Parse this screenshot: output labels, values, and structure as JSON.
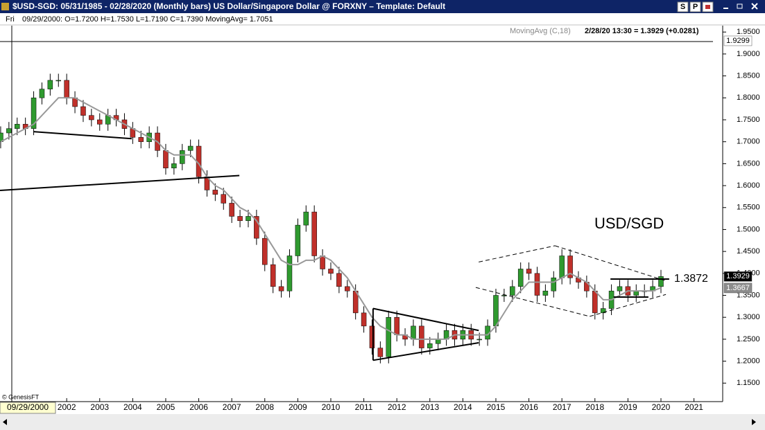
{
  "window": {
    "title": "$USD-SGD:  05/31/1985 - 02/28/2020  (Monthly bars)   US Dollar/Singapore Dollar @ FORXNY  –  Template: Default",
    "buttons": [
      "S",
      "P"
    ]
  },
  "info": {
    "day": "Fri",
    "text": "09/29/2000:  O=1.7200  H=1.7530  L=1.7190  C=1.7390  MovingAvg= 1.7051"
  },
  "indicator_readout": "2/28/20 13:30 = 1.3929 (+0.0281)",
  "copyright": "© GenesisFT",
  "cursor_date": "09/29/2000",
  "chart_data": {
    "type": "candlestick",
    "x": [
      2000,
      2000.25,
      2000.5,
      2000.75,
      2001,
      2001.25,
      2001.5,
      2001.75,
      2002,
      2002.25,
      2002.5,
      2002.75,
      2003,
      2003.25,
      2003.5,
      2003.75,
      2004,
      2004.25,
      2004.5,
      2004.75,
      2005,
      2005.25,
      2005.5,
      2005.75,
      2006,
      2006.25,
      2006.5,
      2006.75,
      2007,
      2007.25,
      2007.5,
      2007.75,
      2008,
      2008.25,
      2008.5,
      2008.75,
      2009,
      2009.25,
      2009.5,
      2009.75,
      2010,
      2010.25,
      2010.5,
      2010.75,
      2011,
      2011.25,
      2011.5,
      2011.75,
      2012,
      2012.25,
      2012.5,
      2012.75,
      2013,
      2013.25,
      2013.5,
      2013.75,
      2014,
      2014.25,
      2014.5,
      2014.75,
      2015,
      2015.25,
      2015.5,
      2015.75,
      2016,
      2016.25,
      2016.5,
      2016.75,
      2017,
      2017.25,
      2017.5,
      2017.75,
      2018,
      2018.25,
      2018.5,
      2018.75,
      2019,
      2019.25,
      2019.5,
      2019.75,
      2020
    ],
    "open": [
      1.7,
      1.72,
      1.73,
      1.74,
      1.73,
      1.8,
      1.82,
      1.84,
      1.84,
      1.8,
      1.78,
      1.76,
      1.75,
      1.74,
      1.76,
      1.75,
      1.73,
      1.71,
      1.7,
      1.72,
      1.68,
      1.64,
      1.65,
      1.68,
      1.69,
      1.62,
      1.59,
      1.58,
      1.56,
      1.53,
      1.52,
      1.53,
      1.48,
      1.42,
      1.37,
      1.36,
      1.44,
      1.51,
      1.54,
      1.44,
      1.41,
      1.4,
      1.37,
      1.36,
      1.31,
      1.28,
      1.23,
      1.21,
      1.3,
      1.26,
      1.25,
      1.28,
      1.23,
      1.24,
      1.25,
      1.27,
      1.25,
      1.27,
      1.25,
      1.25,
      1.28,
      1.35,
      1.35,
      1.37,
      1.41,
      1.4,
      1.35,
      1.36,
      1.39,
      1.44,
      1.39,
      1.38,
      1.36,
      1.31,
      1.32,
      1.36,
      1.37,
      1.35,
      1.36,
      1.36,
      1.37
    ],
    "high": [
      1.735,
      1.745,
      1.755,
      1.755,
      1.815,
      1.835,
      1.855,
      1.855,
      1.855,
      1.815,
      1.795,
      1.775,
      1.765,
      1.775,
      1.775,
      1.765,
      1.745,
      1.725,
      1.735,
      1.735,
      1.695,
      1.665,
      1.695,
      1.705,
      1.705,
      1.635,
      1.605,
      1.595,
      1.575,
      1.545,
      1.545,
      1.545,
      1.495,
      1.435,
      1.385,
      1.455,
      1.525,
      1.555,
      1.555,
      1.455,
      1.425,
      1.415,
      1.385,
      1.375,
      1.325,
      1.295,
      1.245,
      1.315,
      1.315,
      1.275,
      1.295,
      1.295,
      1.255,
      1.265,
      1.285,
      1.285,
      1.285,
      1.285,
      1.265,
      1.295,
      1.365,
      1.365,
      1.385,
      1.425,
      1.425,
      1.415,
      1.375,
      1.405,
      1.455,
      1.455,
      1.405,
      1.395,
      1.375,
      1.335,
      1.375,
      1.385,
      1.385,
      1.375,
      1.375,
      1.385,
      1.408
    ],
    "low": [
      1.685,
      1.705,
      1.715,
      1.715,
      1.715,
      1.785,
      1.805,
      1.825,
      1.785,
      1.765,
      1.745,
      1.735,
      1.725,
      1.725,
      1.735,
      1.715,
      1.695,
      1.685,
      1.685,
      1.665,
      1.625,
      1.625,
      1.635,
      1.665,
      1.605,
      1.575,
      1.565,
      1.545,
      1.515,
      1.505,
      1.505,
      1.465,
      1.405,
      1.355,
      1.345,
      1.345,
      1.425,
      1.495,
      1.425,
      1.395,
      1.385,
      1.355,
      1.345,
      1.295,
      1.265,
      1.215,
      1.195,
      1.195,
      1.245,
      1.235,
      1.235,
      1.215,
      1.215,
      1.225,
      1.235,
      1.235,
      1.235,
      1.235,
      1.235,
      1.235,
      1.265,
      1.335,
      1.335,
      1.355,
      1.385,
      1.335,
      1.335,
      1.345,
      1.375,
      1.375,
      1.365,
      1.345,
      1.295,
      1.295,
      1.305,
      1.345,
      1.335,
      1.335,
      1.345,
      1.345,
      1.355
    ],
    "close": [
      1.72,
      1.73,
      1.74,
      1.73,
      1.8,
      1.82,
      1.84,
      1.84,
      1.8,
      1.78,
      1.76,
      1.75,
      1.74,
      1.76,
      1.75,
      1.73,
      1.71,
      1.7,
      1.72,
      1.68,
      1.64,
      1.65,
      1.68,
      1.69,
      1.62,
      1.59,
      1.58,
      1.56,
      1.53,
      1.52,
      1.53,
      1.48,
      1.42,
      1.37,
      1.36,
      1.44,
      1.51,
      1.54,
      1.44,
      1.41,
      1.4,
      1.37,
      1.36,
      1.31,
      1.28,
      1.23,
      1.21,
      1.3,
      1.26,
      1.25,
      1.28,
      1.23,
      1.24,
      1.25,
      1.27,
      1.25,
      1.27,
      1.25,
      1.25,
      1.28,
      1.35,
      1.35,
      1.37,
      1.41,
      1.4,
      1.35,
      1.36,
      1.39,
      1.44,
      1.39,
      1.38,
      1.36,
      1.31,
      1.32,
      1.36,
      1.37,
      1.35,
      1.36,
      1.36,
      1.37,
      1.3929
    ],
    "up_color": "#2f9a2f",
    "down_color": "#c0302a",
    "moving_average": {
      "name": "MovingAvg (C,18)",
      "color": "#999999",
      "values": [
        1.7,
        1.71,
        1.72,
        1.73,
        1.74,
        1.76,
        1.78,
        1.8,
        1.8,
        1.8,
        1.79,
        1.78,
        1.77,
        1.76,
        1.75,
        1.74,
        1.73,
        1.72,
        1.71,
        1.7,
        1.68,
        1.67,
        1.67,
        1.67,
        1.65,
        1.62,
        1.6,
        1.59,
        1.57,
        1.55,
        1.54,
        1.52,
        1.49,
        1.46,
        1.43,
        1.42,
        1.42,
        1.43,
        1.43,
        1.44,
        1.43,
        1.41,
        1.39,
        1.36,
        1.33,
        1.3,
        1.28,
        1.27,
        1.26,
        1.26,
        1.25,
        1.25,
        1.25,
        1.25,
        1.25,
        1.26,
        1.26,
        1.26,
        1.26,
        1.26,
        1.28,
        1.31,
        1.34,
        1.36,
        1.38,
        1.38,
        1.38,
        1.38,
        1.39,
        1.4,
        1.39,
        1.38,
        1.36,
        1.34,
        1.34,
        1.35,
        1.36,
        1.36,
        1.36,
        1.36,
        1.367
      ]
    },
    "trendlines": [
      {
        "x": [
          2000.99,
          2003.97
        ],
        "y": [
          1.723,
          1.707
        ],
        "dashed": false
      },
      {
        "x": [
          1999.98,
          2007.23
        ],
        "y": [
          1.589,
          1.623
        ],
        "dashed": false
      },
      {
        "x": [
          2011.28,
          2014.48
        ],
        "y": [
          1.32,
          1.27
        ],
        "dashed": false
      },
      {
        "x": [
          2011.28,
          2014.48
        ],
        "y": [
          1.202,
          1.242
        ],
        "dashed": false
      },
      {
        "x": [
          2011.28,
          2011.28
        ],
        "y": [
          1.202,
          1.32
        ],
        "dashed": false
      },
      {
        "x": [
          2014.48,
          2016.79
        ],
        "y": [
          1.426,
          1.463
        ],
        "dashed": true
      },
      {
        "x": [
          2016.79,
          2020.15
        ],
        "y": [
          1.463,
          1.383
        ],
        "dashed": true
      },
      {
        "x": [
          2014.39,
          2017.84
        ],
        "y": [
          1.368,
          1.302
        ],
        "dashed": true
      },
      {
        "x": [
          2017.84,
          2020.15
        ],
        "y": [
          1.302,
          1.352
        ],
        "dashed": true
      },
      {
        "x": [
          2018.47,
          2020.25
        ],
        "y": [
          1.3872,
          1.3872
        ],
        "dashed": false
      },
      {
        "x": [
          2018.57,
          2019.62
        ],
        "y": [
          1.346,
          1.346
        ],
        "dashed": false
      }
    ],
    "annotations": [
      "USD/SGD",
      "1.3872"
    ],
    "price_labels": [
      {
        "value": 1.9299,
        "label": "1.9299",
        "color": "#ffffff",
        "text_color": "#000000"
      },
      {
        "value": 1.3929,
        "label": "1.3929",
        "color": "#000000",
        "text_color": "#ffffff"
      },
      {
        "value": 1.3667,
        "label": "1.3667",
        "color": "#8c8c8c",
        "text_color": "#ffffff"
      }
    ],
    "xlim": [
      1999.98,
      2021.87
    ],
    "ylim": [
      1.111,
      1.963
    ],
    "xticks": [
      2002,
      2003,
      2004,
      2005,
      2006,
      2007,
      2008,
      2009,
      2010,
      2011,
      2012,
      2013,
      2014,
      2015,
      2016,
      2017,
      2018,
      2019,
      2020,
      2021
    ],
    "yticks": [
      {
        "value": 1.95,
        "label": "1.9500"
      },
      {
        "value": 1.9,
        "label": "1.9000"
      },
      {
        "value": 1.85,
        "label": "1.8500"
      },
      {
        "value": 1.8,
        "label": "1.8000"
      },
      {
        "value": 1.75,
        "label": "1.7500"
      },
      {
        "value": 1.7,
        "label": "1.7000"
      },
      {
        "value": 1.65,
        "label": "1.6500"
      },
      {
        "value": 1.6,
        "label": "1.6000"
      },
      {
        "value": 1.55,
        "label": "1.5500"
      },
      {
        "value": 1.5,
        "label": "1.5000"
      },
      {
        "value": 1.45,
        "label": "1.4500"
      },
      {
        "value": 1.4,
        "label": "1.4000"
      },
      {
        "value": 1.35,
        "label": "1.3500"
      },
      {
        "value": 1.3,
        "label": "1.3000"
      },
      {
        "value": 1.25,
        "label": "1.2500"
      },
      {
        "value": 1.2,
        "label": "1.2000"
      },
      {
        "value": 1.15,
        "label": "1.1500"
      }
    ]
  }
}
